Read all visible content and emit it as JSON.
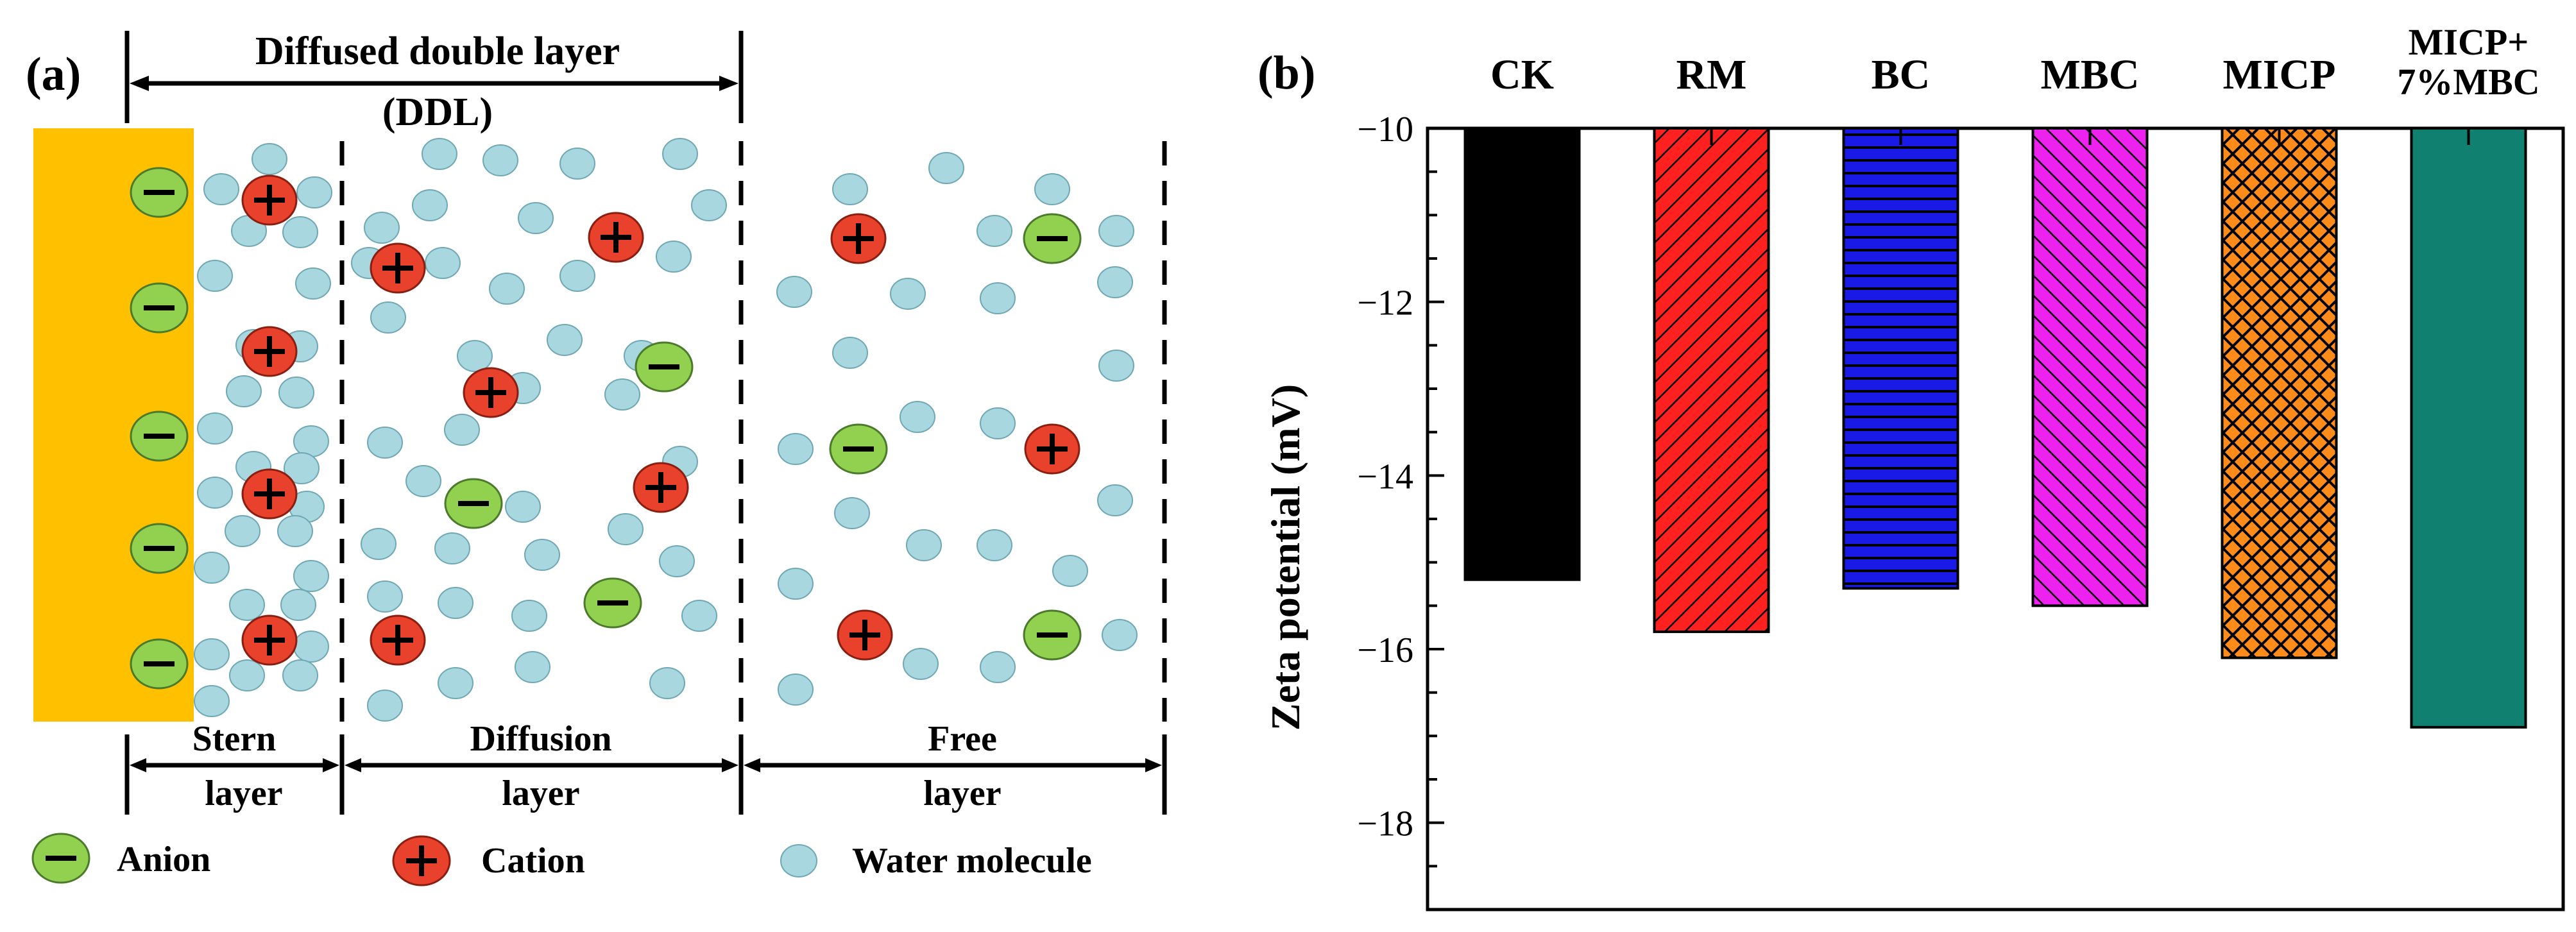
{
  "panel_a": {
    "label": "(a)",
    "ddl_title": "Diffused double layer",
    "ddl_abbr": "(DDL)",
    "layers": [
      {
        "line1": "Stern",
        "line2": "layer"
      },
      {
        "line1": "Diffusion",
        "line2": "layer"
      },
      {
        "line1": "Free",
        "line2": "layer"
      }
    ],
    "legend": {
      "anion": "Anion",
      "cation": "Cation",
      "water": "Water molecule"
    },
    "colors": {
      "surface": "#FFC000",
      "anion": "#92D050",
      "cation": "#E8412C",
      "water": "#A9D7E0"
    }
  },
  "panel_b": {
    "label": "(b)"
  },
  "chart_data": {
    "type": "bar",
    "categories": [
      "CK",
      "RM",
      "BC",
      "MBC",
      "MICP",
      "MICP+\n7%MBC"
    ],
    "values": [
      -15.2,
      -15.8,
      -15.3,
      -15.5,
      -16.1,
      -16.9
    ],
    "ylabel": "Zeta potential (mV)",
    "xlabel": "",
    "ylim": [
      -19,
      -10
    ],
    "yticks": [
      "-10",
      "-12",
      "-14",
      "-16",
      "-18"
    ],
    "bar_colors": [
      "#000000",
      "#FF2020",
      "#1A1AE6",
      "#EE22EE",
      "#FF8C1A",
      "#108070"
    ],
    "bar_patterns": [
      "solid",
      "diag-right",
      "horizontal",
      "diag-left",
      "crosshatch",
      "solid"
    ]
  }
}
